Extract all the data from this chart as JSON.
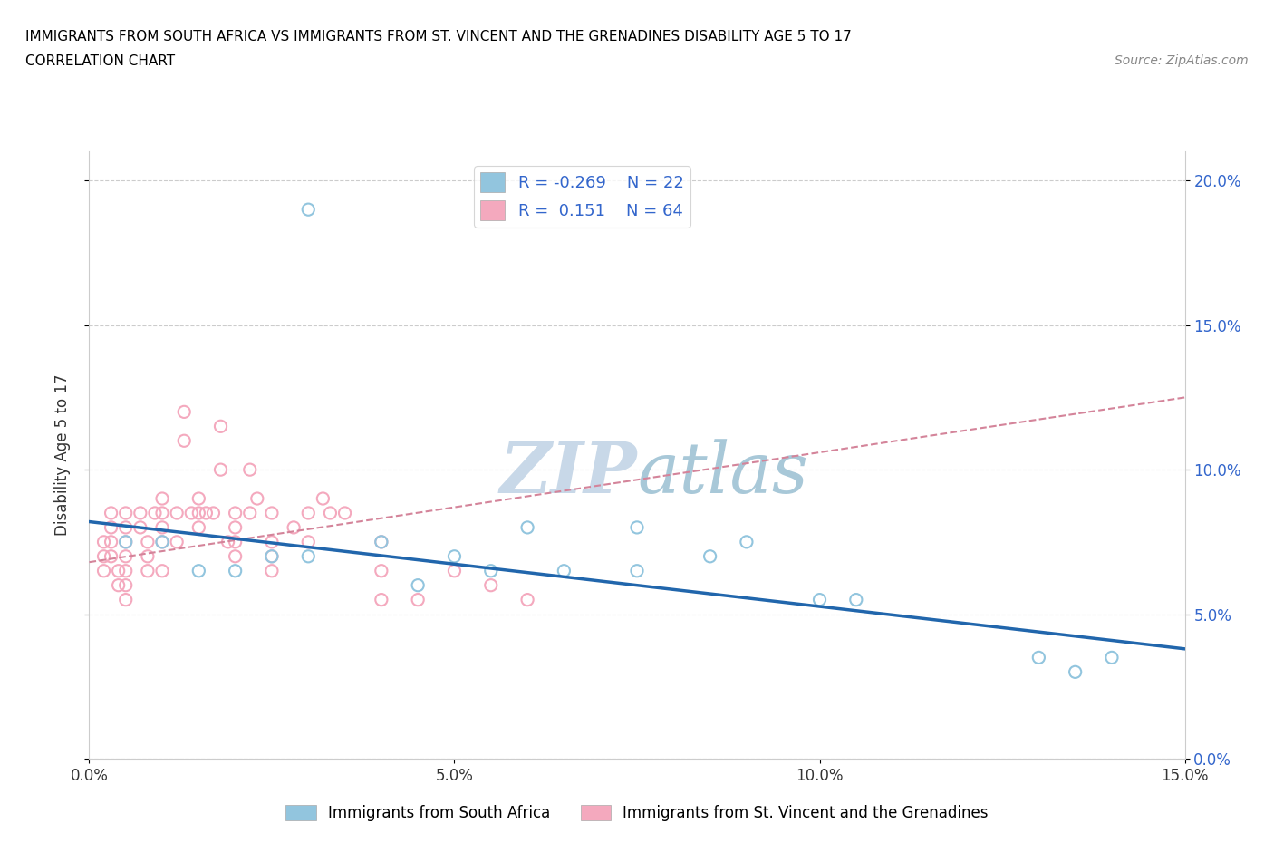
{
  "title_line1": "IMMIGRANTS FROM SOUTH AFRICA VS IMMIGRANTS FROM ST. VINCENT AND THE GRENADINES DISABILITY AGE 5 TO 17",
  "title_line2": "CORRELATION CHART",
  "source_text": "Source: ZipAtlas.com",
  "ylabel": "Disability Age 5 to 17",
  "xmin": 0.0,
  "xmax": 0.15,
  "ymin": 0.0,
  "ymax": 0.21,
  "yticks": [
    0.0,
    0.05,
    0.1,
    0.15,
    0.2
  ],
  "xticks": [
    0.0,
    0.05,
    0.1,
    0.15
  ],
  "blue_scatter_color": "#92c5de",
  "pink_scatter_color": "#f4a9be",
  "blue_line_color": "#2166ac",
  "pink_line_color": "#d4849a",
  "axis_label_color": "#3366cc",
  "watermark_color": "#c8d8e8",
  "R_blue": -0.269,
  "N_blue": 22,
  "R_pink": 0.151,
  "N_pink": 64,
  "legend_label1": "Immigrants from South Africa",
  "legend_label2": "Immigrants from St. Vincent and the Grenadines",
  "blue_scatter_x": [
    0.03,
    0.005,
    0.01,
    0.015,
    0.02,
    0.025,
    0.03,
    0.04,
    0.045,
    0.05,
    0.055,
    0.06,
    0.065,
    0.075,
    0.075,
    0.085,
    0.09,
    0.1,
    0.105,
    0.13,
    0.135,
    0.14
  ],
  "blue_scatter_y": [
    0.19,
    0.075,
    0.075,
    0.065,
    0.065,
    0.07,
    0.07,
    0.075,
    0.06,
    0.07,
    0.065,
    0.08,
    0.065,
    0.08,
    0.065,
    0.07,
    0.075,
    0.055,
    0.055,
    0.035,
    0.03,
    0.035
  ],
  "pink_scatter_x": [
    0.002,
    0.002,
    0.002,
    0.003,
    0.003,
    0.003,
    0.003,
    0.004,
    0.004,
    0.005,
    0.005,
    0.005,
    0.005,
    0.005,
    0.005,
    0.005,
    0.007,
    0.007,
    0.008,
    0.008,
    0.008,
    0.009,
    0.01,
    0.01,
    0.01,
    0.01,
    0.01,
    0.012,
    0.012,
    0.013,
    0.013,
    0.014,
    0.015,
    0.015,
    0.015,
    0.016,
    0.017,
    0.018,
    0.018,
    0.019,
    0.02,
    0.02,
    0.02,
    0.02,
    0.022,
    0.022,
    0.023,
    0.025,
    0.025,
    0.025,
    0.025,
    0.028,
    0.03,
    0.03,
    0.032,
    0.033,
    0.035,
    0.04,
    0.04,
    0.04,
    0.045,
    0.05,
    0.055,
    0.06
  ],
  "pink_scatter_y": [
    0.075,
    0.07,
    0.065,
    0.085,
    0.08,
    0.075,
    0.07,
    0.065,
    0.06,
    0.085,
    0.08,
    0.075,
    0.07,
    0.065,
    0.06,
    0.055,
    0.085,
    0.08,
    0.075,
    0.07,
    0.065,
    0.085,
    0.09,
    0.085,
    0.08,
    0.075,
    0.065,
    0.085,
    0.075,
    0.12,
    0.11,
    0.085,
    0.09,
    0.085,
    0.08,
    0.085,
    0.085,
    0.115,
    0.1,
    0.075,
    0.085,
    0.08,
    0.075,
    0.07,
    0.1,
    0.085,
    0.09,
    0.085,
    0.075,
    0.07,
    0.065,
    0.08,
    0.085,
    0.075,
    0.09,
    0.085,
    0.085,
    0.075,
    0.065,
    0.055,
    0.055,
    0.065,
    0.06,
    0.055
  ],
  "blue_trend_x0": 0.0,
  "blue_trend_y0": 0.082,
  "blue_trend_x1": 0.15,
  "blue_trend_y1": 0.038,
  "pink_trend_x0": 0.0,
  "pink_trend_y0": 0.068,
  "pink_trend_x1": 0.15,
  "pink_trend_y1": 0.125
}
